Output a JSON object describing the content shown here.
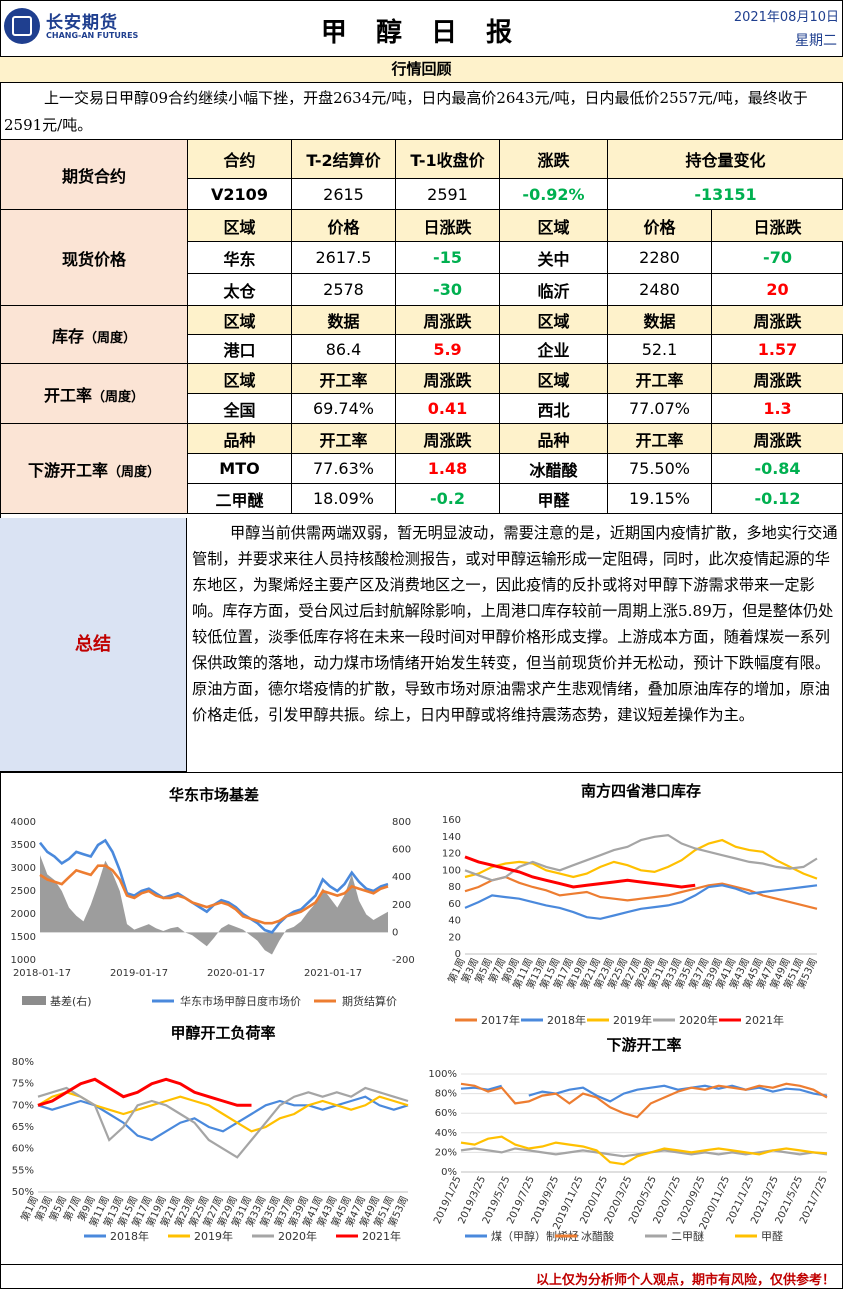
{
  "header": {
    "logo_cn": "长安期货",
    "logo_en": "CHANG-AN FUTURES",
    "title": "甲 醇 日 报",
    "date": "2021年08月10日",
    "weekday": "星期二"
  },
  "review": {
    "heading": "行情回顾",
    "text": "上一交易日甲醇09合约继续小幅下挫，开盘2634元/吨，日内最高价2643元/吨，日内最低价2557元/吨，最终收于2591元/吨。"
  },
  "futures": {
    "label": "期货合约",
    "headers": [
      "合约",
      "T-2结算价",
      "T-1收盘价",
      "涨跌",
      "持仓量变化"
    ],
    "row": [
      "V2109",
      "2615",
      "2591",
      "-0.92%",
      "-13151"
    ]
  },
  "spot": {
    "label": "现货价格",
    "headers": [
      "区域",
      "价格",
      "日涨跌",
      "区域",
      "价格",
      "日涨跌"
    ],
    "rows": [
      [
        "华东",
        "2617.5",
        "-15",
        "关中",
        "2280",
        "-70"
      ],
      [
        "太仓",
        "2578",
        "-30",
        "临沂",
        "2480",
        "20"
      ]
    ]
  },
  "inventory": {
    "label": "库存",
    "label_sub": "（周度）",
    "headers": [
      "区域",
      "数据",
      "周涨跌",
      "区域",
      "数据",
      "周涨跌"
    ],
    "row": [
      "港口",
      "86.4",
      "5.9",
      "企业",
      "52.1",
      "1.57"
    ]
  },
  "operating": {
    "label": "开工率",
    "label_sub": "（周度）",
    "headers": [
      "区域",
      "开工率",
      "周涨跌",
      "区域",
      "开工率",
      "周涨跌"
    ],
    "row": [
      "全国",
      "69.74%",
      "0.41",
      "西北",
      "77.07%",
      "1.3"
    ]
  },
  "downstream": {
    "label": "下游开工率",
    "label_sub": "（周度）",
    "headers": [
      "品种",
      "开工率",
      "周涨跌",
      "品种",
      "开工率",
      "周涨跌"
    ],
    "rows": [
      [
        "MTO",
        "77.63%",
        "1.48",
        "冰醋酸",
        "75.50%",
        "-0.84"
      ],
      [
        "二甲醚",
        "18.09%",
        "-0.2",
        "甲醛",
        "19.15%",
        "-0.12"
      ]
    ]
  },
  "summary": {
    "label": "总结",
    "text": "甲醇当前供需两端双弱，暂无明显波动，需要注意的是，近期国内疫情扩散，多地实行交通管制，并要求来往人员持核酸检测报告，或对甲醇运输形成一定阻碍，同时，此次疫情起源的华东地区，为聚烯烃主要产区及消费地区之一，因此疫情的反扑或将对甲醇下游需求带来一定影响。库存方面，受台风过后封航解除影响，上周港口库存较前一周期上涨5.89万，但是整体仍处较低位置，淡季低库存将在未来一段时间对甲醇价格形成支撑。上游成本方面，随着煤炭一系列保供政策的落地，动力煤市场情绪开始发生转变，但当前现货价并无松动，预计下跌幅度有限。原油方面，德尔塔疫情的扩散，导致市场对原油需求产生悲观情绪，叠加原油库存的增加，原油价格走低，引发甲醇共振。综上，日内甲醇或将维持震荡态势，建议短差操作为主。"
  },
  "colors": {
    "blue": "#4a89dc",
    "orange": "#ed7d31",
    "yellow": "#ffc000",
    "gray": "#a5a5a5",
    "red": "#ff0000",
    "basis_gray": "#8c8c8c"
  },
  "chart_data": [
    {
      "type": "line",
      "title": "华东市场基差",
      "x_ticks": [
        "2018-01-17",
        "2019-01-17",
        "2020-01-17",
        "2021-01-17"
      ],
      "y_ticks_left": [
        "1000",
        "1500",
        "2000",
        "2500",
        "3000",
        "3500",
        "4000"
      ],
      "y_ticks_right": [
        "-200",
        "0",
        "200",
        "400",
        "600",
        "800"
      ],
      "ylim_left": [
        1000,
        4000
      ],
      "ylim_right": [
        -200,
        800
      ],
      "series": [
        {
          "name": "基差(右)",
          "kind": "area",
          "axis": "right",
          "values": [
            560,
            420,
            380,
            300,
            180,
            120,
            80,
            200,
            350,
            520,
            430,
            300,
            60,
            20,
            40,
            60,
            30,
            10,
            30,
            40,
            0,
            -20,
            -60,
            -100,
            -40,
            30,
            60,
            40,
            20,
            -20,
            -60,
            -130,
            -160,
            -60,
            20,
            40,
            80,
            150,
            210,
            320,
            250,
            180,
            270,
            420,
            230,
            130,
            90,
            120,
            150
          ]
        },
        {
          "name": "华东市场甲醇日度市场价",
          "kind": "line",
          "axis": "left",
          "values": [
            3550,
            3350,
            3250,
            3100,
            3200,
            3350,
            3300,
            3250,
            3500,
            3600,
            3350,
            2950,
            2450,
            2400,
            2500,
            2550,
            2450,
            2350,
            2400,
            2450,
            2350,
            2250,
            2150,
            2050,
            2200,
            2300,
            2250,
            2150,
            2000,
            1900,
            1800,
            1650,
            1600,
            1800,
            1950,
            2050,
            2100,
            2250,
            2400,
            2750,
            2600,
            2500,
            2650,
            2900,
            2700,
            2550,
            2500,
            2600,
            2650
          ]
        },
        {
          "name": "期货结算价",
          "kind": "line",
          "axis": "left",
          "values": [
            2850,
            2750,
            2700,
            2650,
            2800,
            2950,
            2900,
            2850,
            3050,
            3050,
            2950,
            2750,
            2400,
            2350,
            2450,
            2500,
            2400,
            2350,
            2350,
            2400,
            2350,
            2250,
            2200,
            2150,
            2200,
            2250,
            2200,
            2100,
            1950,
            1900,
            1850,
            1800,
            1800,
            1850,
            1950,
            2000,
            2050,
            2150,
            2250,
            2500,
            2450,
            2400,
            2450,
            2600,
            2550,
            2500,
            2450,
            2550,
            2600
          ]
        }
      ]
    },
    {
      "type": "line",
      "title": "南方四省港口库存",
      "x_ticks": [
        "第1周",
        "第3周",
        "第5周",
        "第7周",
        "第9周",
        "第11周",
        "第13周",
        "第15周",
        "第17周",
        "第19周",
        "第21周",
        "第23周",
        "第25周",
        "第27周",
        "第29周",
        "第31周",
        "第33周",
        "第35周",
        "第37周",
        "第39周",
        "第41周",
        "第43周",
        "第45周",
        "第47周",
        "第49周",
        "第51周",
        "第53周"
      ],
      "y_ticks": [
        "0",
        "20",
        "40",
        "60",
        "80",
        "100",
        "120",
        "140",
        "160"
      ],
      "ylim": [
        0,
        160
      ],
      "series": [
        {
          "name": "2017年",
          "values": [
            75,
            80,
            88,
            92,
            85,
            80,
            76,
            70,
            72,
            74,
            68,
            66,
            64,
            66,
            68,
            70,
            74,
            78,
            82,
            84,
            80,
            76,
            70,
            66,
            62,
            58,
            54
          ]
        },
        {
          "name": "2018年",
          "values": [
            55,
            62,
            70,
            68,
            66,
            62,
            58,
            55,
            50,
            44,
            42,
            46,
            50,
            54,
            56,
            58,
            62,
            70,
            80,
            82,
            78,
            72,
            74,
            76,
            78,
            80,
            82
          ]
        },
        {
          "name": "2019年",
          "values": [
            92,
            96,
            104,
            108,
            110,
            108,
            100,
            96,
            92,
            96,
            104,
            110,
            106,
            100,
            98,
            104,
            112,
            124,
            132,
            136,
            128,
            124,
            122,
            112,
            104,
            96,
            90
          ]
        },
        {
          "name": "2020年",
          "values": [
            100,
            94,
            88,
            92,
            104,
            110,
            104,
            100,
            106,
            112,
            118,
            124,
            128,
            136,
            140,
            142,
            132,
            126,
            122,
            118,
            114,
            110,
            108,
            104,
            102,
            104,
            114
          ]
        },
        {
          "name": "2021年",
          "values": [
            116,
            110,
            106,
            102,
            98,
            92,
            88,
            84,
            80,
            82,
            84,
            86,
            88,
            86,
            84,
            82,
            80,
            82,
            null,
            null,
            null,
            null,
            null,
            null,
            null,
            null,
            null
          ]
        }
      ],
      "legend": [
        "2017年",
        "2018年",
        "2019年",
        "2020年",
        "2021年"
      ]
    },
    {
      "type": "line",
      "title": "甲醇开工负荷率",
      "x_ticks": [
        "第1周",
        "第3周",
        "第5周",
        "第7周",
        "第9周",
        "第11周",
        "第13周",
        "第15周",
        "第17周",
        "第19周",
        "第21周",
        "第23周",
        "第25周",
        "第27周",
        "第29周",
        "第31周",
        "第33周",
        "第35周",
        "第37周",
        "第39周",
        "第41周",
        "第43周",
        "第45周",
        "第47周",
        "第49周",
        "第51周",
        "第53周"
      ],
      "y_ticks": [
        "50%",
        "55%",
        "60%",
        "65%",
        "70%",
        "75%",
        "80%"
      ],
      "ylim": [
        50,
        80
      ],
      "series": [
        {
          "name": "2018年",
          "values": [
            70,
            69,
            70,
            71,
            70,
            68,
            66,
            63,
            62,
            64,
            66,
            67,
            65,
            64,
            66,
            68,
            70,
            71,
            70,
            70,
            69,
            70,
            71,
            72,
            70,
            69,
            70
          ]
        },
        {
          "name": "2019年",
          "values": [
            70,
            72,
            73,
            72,
            70,
            69,
            68,
            69,
            70,
            71,
            72,
            71,
            70,
            68,
            66,
            64,
            65,
            67,
            68,
            70,
            71,
            70,
            69,
            70,
            72,
            71,
            70
          ]
        },
        {
          "name": "2020年",
          "values": [
            72,
            73,
            74,
            72,
            70,
            62,
            65,
            70,
            71,
            70,
            68,
            66,
            62,
            60,
            58,
            62,
            66,
            70,
            72,
            73,
            72,
            73,
            72,
            74,
            73,
            72,
            71
          ]
        },
        {
          "name": "2021年",
          "values": [
            70,
            71,
            73,
            75,
            76,
            74,
            72,
            73,
            75,
            76,
            75,
            73,
            72,
            71,
            70,
            70,
            null,
            null,
            null,
            null,
            null,
            null,
            null,
            null,
            null,
            null,
            null
          ]
        }
      ],
      "legend": [
        "2018年",
        "2019年",
        "2020年",
        "2021年"
      ]
    },
    {
      "type": "line",
      "title": "下游开工率",
      "x_ticks": [
        "2019/1/25",
        "2019/3/25",
        "2019/5/25",
        "2019/7/25",
        "2019/9/25",
        "2019/11/25",
        "2020/1/25",
        "2020/3/25",
        "2020/5/25",
        "2020/7/25",
        "2020/9/25",
        "2020/11/25",
        "2021/1/25",
        "2021/3/25",
        "2021/5/25",
        "2021/7/25"
      ],
      "y_ticks": [
        "0%",
        "20%",
        "40%",
        "60%",
        "80%",
        "100%"
      ],
      "ylim": [
        0,
        100
      ],
      "series": [
        {
          "name": "煤（甲醇）制烯烃",
          "values": [
            85,
            86,
            84,
            88,
            null,
            78,
            82,
            80,
            84,
            86,
            78,
            72,
            80,
            84,
            86,
            88,
            84,
            86,
            88,
            85,
            88,
            84,
            86,
            82,
            85,
            84,
            80,
            78
          ]
        },
        {
          "name": "冰醋酸",
          "values": [
            90,
            88,
            82,
            86,
            70,
            72,
            78,
            80,
            70,
            80,
            76,
            66,
            60,
            56,
            70,
            76,
            82,
            86,
            84,
            88,
            86,
            84,
            88,
            86,
            90,
            88,
            84,
            76
          ]
        },
        {
          "name": "二甲醚",
          "values": [
            22,
            24,
            22,
            20,
            24,
            22,
            20,
            18,
            20,
            22,
            20,
            18,
            16,
            18,
            20,
            22,
            20,
            18,
            20,
            18,
            20,
            18,
            20,
            22,
            20,
            18,
            20,
            18
          ]
        },
        {
          "name": "甲醛",
          "values": [
            30,
            28,
            34,
            36,
            28,
            24,
            26,
            30,
            28,
            26,
            22,
            10,
            8,
            16,
            20,
            24,
            22,
            20,
            22,
            24,
            22,
            20,
            18,
            22,
            24,
            22,
            20,
            19
          ]
        }
      ],
      "legend": [
        "煤（甲醇）制烯烃",
        "冰醋酸",
        "二甲醚",
        "甲醛"
      ]
    }
  ],
  "footer": {
    "disclaimer": "以上仅为分析师个人观点，期市有风险，仅供参考！"
  }
}
